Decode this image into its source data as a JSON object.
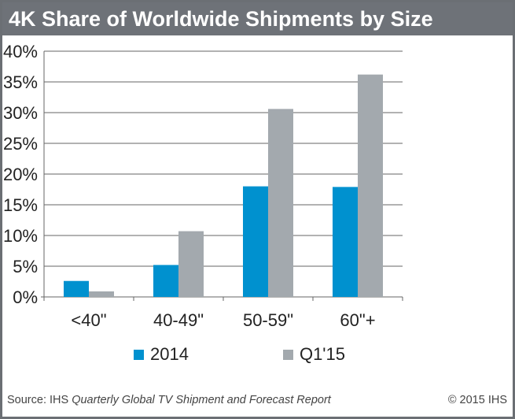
{
  "chart_data": {
    "type": "bar",
    "title": "4K Share of Worldwide Shipments by Size",
    "categories": [
      "<40\"",
      "40-49\"",
      "50-59\"",
      "60\"+"
    ],
    "series": [
      {
        "name": "2014",
        "values": [
          2.6,
          5.2,
          18.0,
          17.9
        ],
        "color": "#0091cf"
      },
      {
        "name": "Q1'15",
        "values": [
          0.9,
          10.7,
          30.6,
          36.2
        ],
        "color": "#a3a9ae"
      }
    ],
    "ylim": [
      0,
      40
    ],
    "yticks": [
      "0%",
      "5%",
      "10%",
      "15%",
      "20%",
      "25%",
      "30%",
      "35%",
      "40%"
    ],
    "xlabel": "",
    "ylabel": "",
    "grid": true,
    "legend": "bottom"
  },
  "source": {
    "prefix": "Source: IHS ",
    "title": "Quarterly Global TV Shipment and Forecast Report"
  },
  "copyright": "© 2015 IHS"
}
